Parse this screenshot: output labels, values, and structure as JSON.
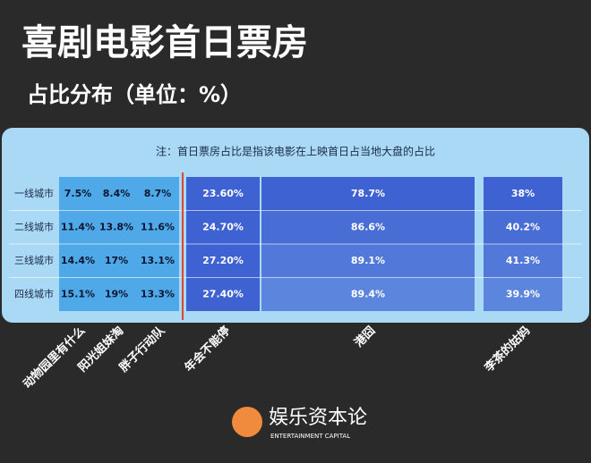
{
  "chart_data": {
    "type": "table-bars",
    "title": "喜剧电影首日票房",
    "subtitle": "占比分布（单位：%）",
    "note": "注：首日票房占比是指该电影在上映首日占当地大盘的占比",
    "categories": [
      "动物园里有什么",
      "阳光姐妹淘",
      "胖子行动队",
      "年会不能停",
      "港囧",
      "李茶的姑妈"
    ],
    "category_colors": [
      "#4fa9e8",
      "#4fa9e8",
      "#4fa9e8",
      "#3f62d3",
      "#3f62d3",
      "#3f62d3"
    ],
    "series": [
      {
        "name": "一线城市",
        "values": [
          7.5,
          8.4,
          8.7,
          23.6,
          78.7,
          38
        ],
        "value_labels": [
          "7.5%",
          "8.4%",
          "8.7%",
          "23.60%",
          "78.7%",
          "38%"
        ]
      },
      {
        "name": "二线城市",
        "values": [
          11.4,
          13.8,
          11.6,
          24.7,
          86.6,
          40.2
        ],
        "value_labels": [
          "11.4%",
          "13.8%",
          "11.6%",
          "24.70%",
          "86.6%",
          "40.2%"
        ]
      },
      {
        "name": "三线城市",
        "values": [
          14.4,
          17,
          13.1,
          27.2,
          89.1,
          41.3
        ],
        "value_labels": [
          "14.4%",
          "17%",
          "13.1%",
          "27.20%",
          "89.1%",
          "41.3%"
        ]
      },
      {
        "name": "四线城市",
        "values": [
          15.1,
          19,
          13.3,
          27.4,
          89.4,
          39.9
        ],
        "value_labels": [
          "15.1%",
          "19%",
          "13.3%",
          "27.40%",
          "89.4%",
          "39.9%"
        ]
      }
    ]
  },
  "brand": {
    "name": "娱乐资本论",
    "tagline": "ENTERTAINMENT CAPITAL"
  }
}
